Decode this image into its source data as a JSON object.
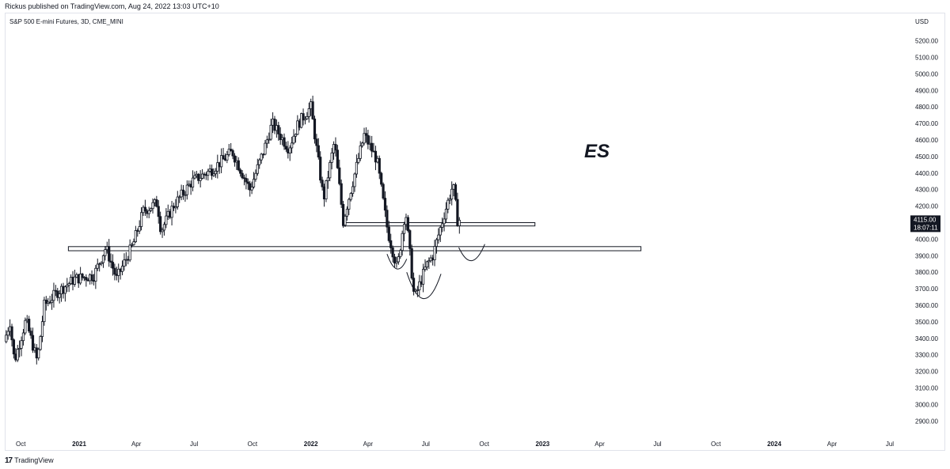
{
  "header": {
    "published": "Rickus published on TradingView.com, Aug 24, 2022 13:03 UTC+10",
    "symbol_line": "S&P 500 E-mini Futures, 3D, CME_MINI"
  },
  "footer": {
    "logo_mark": "17",
    "brand": "TradingView"
  },
  "colors": {
    "candle": "#131722",
    "price_label_bg": "#131722",
    "price_label_text": "#ffffff"
  },
  "chart_data": {
    "type": "candlestick",
    "title": "S&P 500 E-mini Futures, 3D, CME_MINI",
    "annotation": "ES",
    "currency": "USD",
    "last_price": "4115.00",
    "countdown": "18:07:11",
    "ylim": [
      2820,
      5270
    ],
    "yticks": [
      "5200.00",
      "5100.00",
      "5000.00",
      "4900.00",
      "4800.00",
      "4700.00",
      "4600.00",
      "4500.00",
      "4400.00",
      "4300.00",
      "4200.00",
      "4100.00",
      "4000.00",
      "3900.00",
      "3800.00",
      "3700.00",
      "3600.00",
      "3500.00",
      "3400.00",
      "3300.00",
      "3200.00",
      "3100.00",
      "3000.00",
      "2900.00"
    ],
    "xlim": [
      "2020-09-07",
      "2024-07-31"
    ],
    "xticks": [
      {
        "date": "2020-10-01",
        "label": "Oct"
      },
      {
        "date": "2021-01-01",
        "label": "2021"
      },
      {
        "date": "2021-04-01",
        "label": "Apr"
      },
      {
        "date": "2021-07-01",
        "label": "Jul"
      },
      {
        "date": "2021-10-01",
        "label": "Oct"
      },
      {
        "date": "2022-01-01",
        "label": "2022"
      },
      {
        "date": "2022-04-01",
        "label": "Apr"
      },
      {
        "date": "2022-07-01",
        "label": "Jul"
      },
      {
        "date": "2022-10-01",
        "label": "Oct"
      },
      {
        "date": "2023-01-01",
        "label": "2023"
      },
      {
        "date": "2023-04-01",
        "label": "Apr"
      },
      {
        "date": "2023-07-01",
        "label": "Jul"
      },
      {
        "date": "2023-10-01",
        "label": "Oct"
      },
      {
        "date": "2024-01-01",
        "label": "2024"
      },
      {
        "date": "2024-04-01",
        "label": "Apr"
      },
      {
        "date": "2024-07-01",
        "label": "Jul"
      }
    ],
    "price_path": [
      [
        "2020-09-08",
        3380
      ],
      [
        "2020-09-17",
        3500
      ],
      [
        "2020-09-24",
        3260
      ],
      [
        "2020-10-12",
        3510
      ],
      [
        "2020-10-30",
        3260
      ],
      [
        "2020-11-10",
        3600
      ],
      [
        "2020-12-01",
        3680
      ],
      [
        "2020-12-28",
        3760
      ],
      [
        "2021-01-27",
        3780
      ],
      [
        "2021-02-15",
        3950
      ],
      [
        "2021-03-04",
        3760
      ],
      [
        "2021-03-30",
        3970
      ],
      [
        "2021-04-15",
        4170
      ],
      [
        "2021-05-07",
        4220
      ],
      [
        "2021-05-13",
        4050
      ],
      [
        "2021-06-01",
        4200
      ],
      [
        "2021-07-01",
        4350
      ],
      [
        "2021-08-01",
        4420
      ],
      [
        "2021-09-02",
        4530
      ],
      [
        "2021-09-30",
        4300
      ],
      [
        "2021-10-22",
        4540
      ],
      [
        "2021-11-04",
        4700
      ],
      [
        "2021-11-30",
        4550
      ],
      [
        "2021-12-15",
        4700
      ],
      [
        "2022-01-04",
        4800
      ],
      [
        "2022-01-24",
        4240
      ],
      [
        "2022-02-10",
        4590
      ],
      [
        "2022-02-24",
        4110
      ],
      [
        "2022-03-29",
        4630
      ],
      [
        "2022-04-18",
        4480
      ],
      [
        "2022-05-05",
        4050
      ],
      [
        "2022-05-20",
        3820
      ],
      [
        "2022-06-02",
        4180
      ],
      [
        "2022-06-16",
        3640
      ],
      [
        "2022-07-05",
        3840
      ],
      [
        "2022-07-15",
        3900
      ],
      [
        "2022-08-02",
        4150
      ],
      [
        "2022-08-16",
        4330
      ],
      [
        "2022-08-23",
        4115
      ]
    ],
    "drawings": {
      "upper_box": {
        "start": "2022-02-20",
        "end": "2022-12-20",
        "top": 4100,
        "bottom": 4080
      },
      "lower_box": {
        "start": "2020-12-15",
        "end": "2023-06-05",
        "top": 3955,
        "bottom": 3930
      },
      "arc_left": {
        "start": "2022-05-01",
        "end": "2022-06-01",
        "low": 3820,
        "start_y": 3910,
        "end_y": 3880
      },
      "arc_mid": {
        "start": "2022-06-01",
        "end": "2022-07-25",
        "low": 3640,
        "start_y": 3800,
        "end_y": 3790
      },
      "arc_right": {
        "start": "2022-08-22",
        "end": "2022-10-02",
        "low": 3870,
        "start_y": 3950,
        "end_y": 3970
      }
    }
  }
}
